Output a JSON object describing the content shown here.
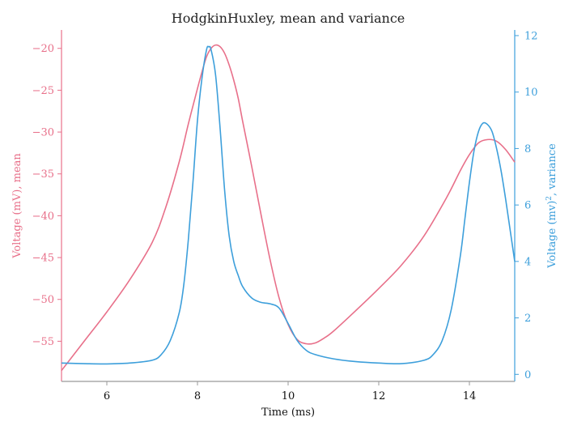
{
  "chart_data": {
    "type": "line",
    "title": "HodgkinHuxley, mean and variance",
    "xlabel": "Time (ms)",
    "ylabel_left": "Voltage (mV), mean",
    "ylabel_right_prefix": "Voltage (mv)",
    "ylabel_right_sup": "2",
    "ylabel_right_suffix": ", variance",
    "xlim": [
      5,
      15
    ],
    "ylim_left": [
      -59.8,
      -17.8
    ],
    "ylim_right": [
      -0.25,
      12.2
    ],
    "x_ticks": [
      6,
      8,
      10,
      12,
      14
    ],
    "y_left_ticks": [
      -20,
      -25,
      -30,
      -35,
      -40,
      -45,
      -50,
      -55
    ],
    "y_left_tick_labels": [
      "−20",
      "−25",
      "−30",
      "−35",
      "−40",
      "−45",
      "−50",
      "−55"
    ],
    "y_right_ticks": [
      0,
      2,
      4,
      6,
      8,
      10,
      12
    ],
    "colors": {
      "left": "#e8708a",
      "right": "#3d9fdb",
      "spine": "#999999"
    },
    "grid": false,
    "series": [
      {
        "axis": "left",
        "x": [
          5.0,
          5.5,
          6.0,
          6.5,
          7.0,
          7.3,
          7.6,
          7.8,
          8.0,
          8.1,
          8.2,
          8.3,
          8.4,
          8.5,
          8.6,
          8.7,
          8.8,
          8.9,
          9.0,
          9.2,
          9.4,
          9.6,
          9.8,
          10.0,
          10.2,
          10.4,
          10.6,
          10.8,
          11.0,
          11.5,
          12.0,
          12.5,
          13.0,
          13.5,
          13.8,
          14.0,
          14.2,
          14.4,
          14.6,
          14.8,
          15.0
        ],
        "values": [
          -58.5,
          -55.0,
          -51.5,
          -47.7,
          -43.2,
          -39.0,
          -33.5,
          -29.0,
          -24.8,
          -22.8,
          -21.0,
          -20.0,
          -19.6,
          -19.8,
          -20.6,
          -22.0,
          -23.8,
          -26.0,
          -28.8,
          -34.2,
          -39.8,
          -45.2,
          -49.8,
          -53.0,
          -54.8,
          -55.3,
          -55.2,
          -54.6,
          -53.8,
          -51.3,
          -48.7,
          -45.9,
          -42.4,
          -37.8,
          -34.6,
          -32.7,
          -31.3,
          -30.9,
          -31.1,
          -32.1,
          -33.6
        ]
      },
      {
        "axis": "right",
        "x": [
          5.0,
          5.5,
          6.0,
          6.5,
          7.0,
          7.2,
          7.4,
          7.6,
          7.7,
          7.8,
          7.9,
          8.0,
          8.1,
          8.2,
          8.25,
          8.3,
          8.4,
          8.5,
          8.6,
          8.7,
          8.8,
          8.9,
          9.0,
          9.2,
          9.4,
          9.6,
          9.8,
          10.0,
          10.2,
          10.4,
          10.6,
          11.0,
          11.5,
          12.0,
          12.5,
          13.0,
          13.2,
          13.4,
          13.6,
          13.8,
          13.9,
          14.0,
          14.1,
          14.2,
          14.3,
          14.4,
          14.5,
          14.6,
          14.7,
          14.8,
          14.9,
          15.0
        ],
        "values": [
          0.4,
          0.38,
          0.37,
          0.4,
          0.5,
          0.7,
          1.2,
          2.2,
          3.2,
          4.8,
          6.8,
          9.0,
          10.5,
          11.5,
          11.6,
          11.5,
          10.6,
          8.7,
          6.5,
          4.9,
          4.0,
          3.5,
          3.1,
          2.7,
          2.55,
          2.5,
          2.35,
          1.8,
          1.2,
          0.85,
          0.7,
          0.55,
          0.45,
          0.4,
          0.38,
          0.5,
          0.7,
          1.2,
          2.3,
          4.2,
          5.5,
          6.8,
          7.9,
          8.6,
          8.9,
          8.85,
          8.6,
          8.0,
          7.2,
          6.2,
          5.1,
          4.0
        ]
      }
    ]
  }
}
